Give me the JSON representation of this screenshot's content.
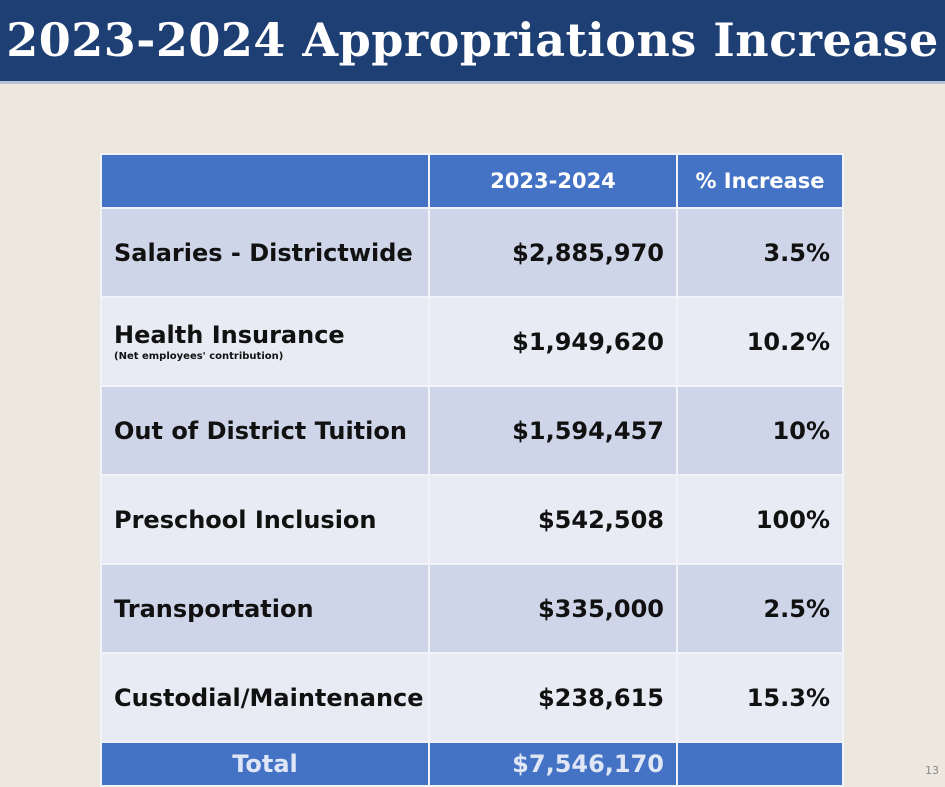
{
  "slide": {
    "title": "2023-2024 Appropriations Increase",
    "page_number": "13"
  },
  "table": {
    "headers": [
      "",
      "2023-2024",
      "% Increase"
    ],
    "rows": [
      {
        "label": "Salaries - Districtwide",
        "sublabel": "",
        "amount": "$2,885,970",
        "increase": "3.5%"
      },
      {
        "label": "Health Insurance",
        "sublabel": "(Net employees' contribution)",
        "amount": "$1,949,620",
        "increase": "10.2%"
      },
      {
        "label": "Out of District Tuition",
        "sublabel": "",
        "amount": "$1,594,457",
        "increase": "10%"
      },
      {
        "label": "Preschool Inclusion",
        "sublabel": "",
        "amount": "$542,508",
        "increase": "100%"
      },
      {
        "label": "Transportation",
        "sublabel": "",
        "amount": "$335,000",
        "increase": "2.5%"
      },
      {
        "label": "Custodial/Maintenance",
        "sublabel": "",
        "amount": "$238,615",
        "increase": "15.3%"
      }
    ],
    "total": {
      "label": "Total",
      "amount": "$7,546,170",
      "increase": ""
    }
  },
  "colors": {
    "title_bar": "#1e3f73",
    "header": "#4472c4",
    "row_dark": "#cfd5e8",
    "row_light": "#e8eaf4",
    "background": "#ece8df"
  }
}
